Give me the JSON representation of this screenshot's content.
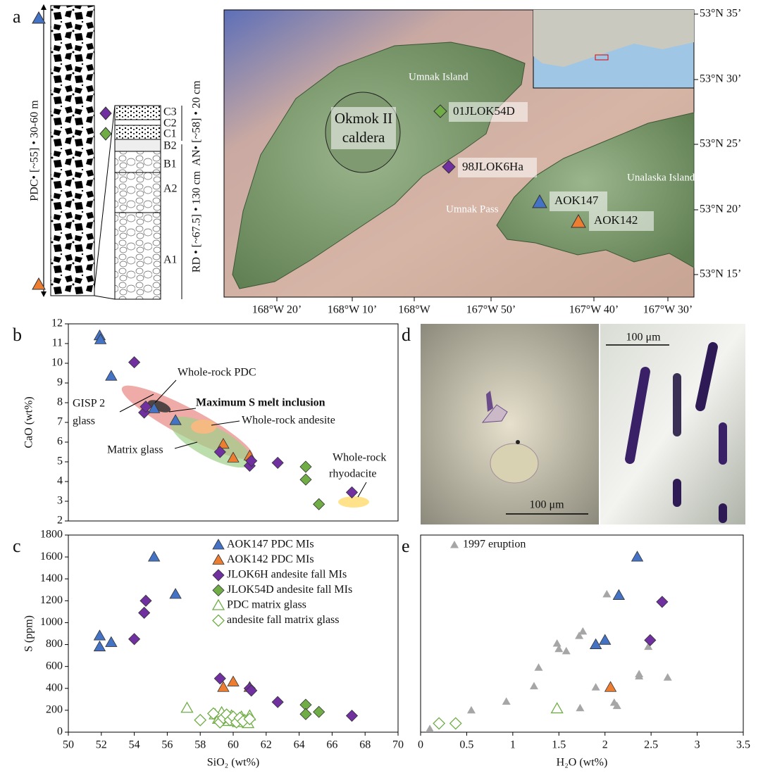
{
  "panel_labels": [
    "a",
    "b",
    "c",
    "d",
    "e"
  ],
  "stratigraphy": {
    "pdc_label": "PDC• [~55] • 30-60 m",
    "units": [
      "C3",
      "C2",
      "C1",
      "B2",
      "B1",
      "A2",
      "A1"
    ],
    "an_label": "AN• [~58] • 20 cm",
    "rd_label": "RD • [~67.5] • 130 cm"
  },
  "map": {
    "places": [
      "Umnak Island",
      "Unalaska Island",
      "Umnak Pass"
    ],
    "caldera": [
      "Okmok II",
      "caldera"
    ],
    "samples": [
      "01JLOK54D",
      "98JLOK6Ha",
      "AOK147",
      "AOK142"
    ],
    "lat_labels": [
      "53°N 35’",
      "53°N 30’",
      "53°N 25’",
      "53°N 20’",
      "53°N 15’"
    ],
    "lon_labels": [
      "168°W 20’",
      "168°W 10’",
      "168°W",
      "167°W 50’",
      "167°W 40’",
      "167°W 30’"
    ]
  },
  "micrographs": {
    "scale_left": "100 μm",
    "scale_right": "100 μm"
  },
  "chart_data": [
    {
      "type": "scatter",
      "ylabel": "CaO (wt%)",
      "xlim": [
        50,
        70
      ],
      "ylim": [
        2,
        12
      ],
      "yticks": [
        2,
        3,
        4,
        5,
        6,
        7,
        8,
        9,
        10,
        11,
        12
      ],
      "annotations": [
        "GISP 2",
        "glass",
        "Whole-rock PDC",
        "Maximum S melt inclusion",
        "Whole-rock andesite",
        "Matrix glass",
        "Whole-rock",
        "rhyodacite"
      ],
      "series": [
        {
          "color": "#4472c4",
          "marker": "triangle",
          "x": [
            51.9,
            51.95,
            52.6,
            55.2,
            56.5
          ],
          "values": [
            11.4,
            11.2,
            9.35,
            7.7,
            7.1
          ]
        },
        {
          "color": "#ed7d31",
          "marker": "triangle",
          "x": [
            59.4,
            60.0,
            61.0
          ],
          "values": [
            5.9,
            5.2,
            5.3
          ]
        },
        {
          "color": "#7030a0",
          "marker": "diamond",
          "x": [
            54.0,
            54.6,
            54.7,
            59.2,
            61.0,
            61.1,
            62.7,
            67.2
          ],
          "values": [
            10.05,
            7.5,
            7.8,
            5.5,
            4.8,
            5.05,
            4.95,
            3.45
          ]
        },
        {
          "color": "#70ad47",
          "marker": "diamond",
          "x": [
            64.4,
            64.4,
            65.2
          ],
          "values": [
            4.75,
            4.1,
            2.85
          ]
        }
      ]
    },
    {
      "type": "scatter",
      "xlabel": "SiO₂ (wt%)",
      "ylabel": "S (ppm)",
      "xlim": [
        50,
        70
      ],
      "ylim": [
        0,
        1800
      ],
      "xticks": [
        50,
        52,
        54,
        56,
        58,
        60,
        62,
        64,
        66,
        68,
        70
      ],
      "yticks": [
        0,
        200,
        400,
        600,
        800,
        1000,
        1200,
        1400,
        1600,
        1800
      ],
      "legend": "top-right",
      "series": [
        {
          "name": "AOK147 PDC MIs",
          "color": "#4472c4",
          "marker": "triangle",
          "x": [
            51.9,
            51.9,
            52.6,
            55.2,
            56.5
          ],
          "values": [
            880,
            780,
            820,
            1600,
            1260
          ]
        },
        {
          "name": "AOK142 PDC MIs",
          "color": "#ed7d31",
          "marker": "triangle",
          "x": [
            59.4,
            60.0,
            61.0
          ],
          "values": [
            410,
            460,
            410
          ]
        },
        {
          "name": "JLOK6H andesite fall MIs",
          "color": "#7030a0",
          "marker": "diamond",
          "x": [
            54.0,
            54.6,
            54.7,
            59.2,
            61.0,
            61.1,
            62.7,
            67.2
          ],
          "values": [
            850,
            1090,
            1200,
            490,
            400,
            380,
            275,
            150
          ]
        },
        {
          "name": "JLOK54D andesite fall MIs",
          "color": "#70ad47",
          "marker": "diamond",
          "x": [
            64.4,
            64.4,
            65.2
          ],
          "values": [
            250,
            165,
            185
          ]
        },
        {
          "name": "PDC matrix glass",
          "color": "#70ad47",
          "marker": "triangle-open",
          "x": [
            57.2,
            58.9,
            59.1,
            59.3,
            59.5,
            59.7,
            59.9,
            60.1,
            60.3,
            60.5,
            60.7,
            60.9,
            61.0
          ],
          "values": [
            220,
            160,
            120,
            180,
            140,
            100,
            150,
            120,
            90,
            140,
            110,
            80,
            150
          ]
        },
        {
          "name": "andesite fall matrix glass",
          "color": "#70ad47",
          "marker": "diamond-open",
          "x": [
            58.0,
            58.8,
            59.2,
            59.4,
            59.6,
            59.8,
            60.0,
            60.2,
            60.4,
            60.6,
            61.0
          ],
          "values": [
            110,
            170,
            90,
            130,
            160,
            110,
            140,
            90,
            130,
            100,
            120
          ]
        }
      ]
    },
    {
      "type": "scatter",
      "xlabel": "H₂O (wt%)",
      "xlim": [
        0,
        3.5
      ],
      "ylim": [
        0,
        1800
      ],
      "xticks": [
        0,
        0.5,
        1,
        1.5,
        2,
        2.5,
        3,
        3.5
      ],
      "legend": "top-left",
      "series": [
        {
          "name": "1997 eruption",
          "color": "#a6a6a6",
          "marker": "triangle-small",
          "x": [
            0.1,
            0.55,
            0.93,
            1.23,
            1.28,
            1.48,
            1.5,
            1.58,
            1.72,
            1.76,
            1.73,
            1.9,
            2.02,
            2.1,
            2.13,
            2.37,
            2.37,
            2.47,
            2.68
          ],
          "values": [
            30,
            200,
            280,
            420,
            590,
            810,
            760,
            740,
            880,
            920,
            220,
            410,
            1260,
            270,
            240,
            530,
            510,
            780,
            500
          ]
        },
        {
          "color": "#4472c4",
          "marker": "triangle",
          "x": [
            2.35,
            2.15,
            2.0,
            1.9
          ],
          "values": [
            1600,
            1250,
            840,
            800
          ]
        },
        {
          "color": "#ed7d31",
          "marker": "triangle",
          "x": [
            2.06
          ],
          "values": [
            410
          ]
        },
        {
          "color": "#7030a0",
          "marker": "diamond",
          "x": [
            2.62,
            2.49
          ],
          "values": [
            1190,
            840
          ]
        },
        {
          "color": "#70ad47",
          "marker": "triangle-open",
          "x": [
            1.48
          ],
          "values": [
            215
          ]
        },
        {
          "color": "#70ad47",
          "marker": "diamond-open",
          "x": [
            0.2,
            0.38
          ],
          "values": [
            80,
            80
          ]
        }
      ]
    }
  ]
}
